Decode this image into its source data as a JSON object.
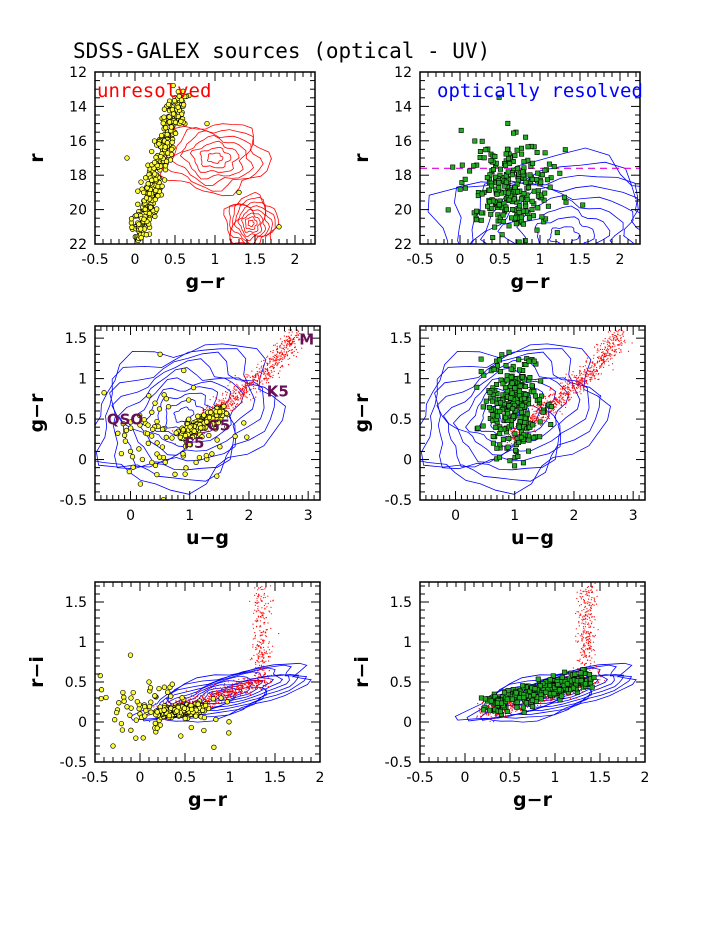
{
  "page": {
    "title": "SDSS-GALEX sources (optical - UV)"
  },
  "colors": {
    "frame": "#000000",
    "stars_red": "#ff0000",
    "galaxy_blue": "#0000ff",
    "unresolved_fill": "#ffff33",
    "resolved_fill": "#22aa22",
    "magenta_line": "#dd00dd",
    "label_purple": "#661155"
  },
  "chart_data": [
    {
      "type": "scatter",
      "panel": "top-left",
      "annotation": "unresolved",
      "xlabel": "g−r",
      "ylabel": "r",
      "xlim": [
        -0.5,
        2.25
      ],
      "ylim": [
        22,
        12
      ],
      "xticks": [
        "-0.5",
        "0",
        "0.5",
        "1",
        "1.5",
        "2"
      ],
      "yticks": [
        "12",
        "14",
        "16",
        "18",
        "20",
        "22"
      ],
      "series": [
        {
          "marker": "yellow circle",
          "points_sample": [
            [
              0.4,
              14
            ],
            [
              0.45,
              15
            ],
            [
              0.35,
              16
            ],
            [
              0.3,
              17
            ],
            [
              0.25,
              18
            ],
            [
              0.15,
              19
            ],
            [
              0.1,
              20
            ],
            [
              0.0,
              21
            ],
            [
              0.5,
              14.5
            ],
            [
              0.5,
              13.5
            ],
            [
              0.6,
              14
            ],
            [
              -0.1,
              17
            ],
            [
              0.9,
              15
            ],
            [
              1.3,
              19
            ],
            [
              1.8,
              21
            ]
          ]
        },
        {
          "marker": "red contours",
          "region": "stars (g-r 0.5-2, r 14-22)"
        }
      ]
    },
    {
      "type": "scatter",
      "panel": "top-right",
      "annotation": "optically resolved",
      "xlabel": "g−r",
      "ylabel": "r",
      "xlim": [
        -0.5,
        2.25
      ],
      "ylim": [
        22,
        12
      ],
      "xticks": [
        "-0.5",
        "0",
        "0.5",
        "1",
        "1.5",
        "2"
      ],
      "yticks": [
        "12",
        "14",
        "16",
        "18",
        "20",
        "22"
      ],
      "hline": 17.6,
      "series": [
        {
          "marker": "green square",
          "points_sample": [
            [
              0.5,
              18
            ],
            [
              0.6,
              18.5
            ],
            [
              0.7,
              19
            ],
            [
              0.4,
              17.8
            ],
            [
              0.8,
              18.2
            ],
            [
              0.5,
              19.5
            ],
            [
              0.9,
              20
            ],
            [
              0.3,
              19
            ],
            [
              0.6,
              16.5
            ],
            [
              0.7,
              15.5
            ],
            [
              1.0,
              18.5
            ],
            [
              0.2,
              20.5
            ]
          ]
        },
        {
          "marker": "blue contours",
          "region": "galaxies (g-r 0-2.2, r 17-22)"
        }
      ]
    },
    {
      "type": "scatter",
      "panel": "middle-left",
      "xlabel": "u−g",
      "ylabel": "g−r",
      "xlim": [
        -0.6,
        3.2
      ],
      "ylim": [
        -0.5,
        1.65
      ],
      "xticks": [
        "0",
        "1",
        "2",
        "3"
      ],
      "yticks": [
        "-0.5",
        "0",
        "0.5",
        "1",
        "1.5"
      ],
      "labels": [
        "QSO",
        "F5",
        "G5",
        "K5",
        "M"
      ],
      "series": [
        {
          "marker": "yellow circle",
          "points_sample": [
            [
              0.9,
              0.3
            ],
            [
              1.0,
              0.35
            ],
            [
              1.1,
              0.4
            ],
            [
              1.2,
              0.45
            ],
            [
              1.3,
              0.5
            ],
            [
              1.4,
              0.55
            ],
            [
              0.0,
              0.1
            ],
            [
              0.2,
              0.0
            ],
            [
              -0.1,
              0.3
            ],
            [
              0.3,
              0.2
            ],
            [
              0.5,
              1.3
            ],
            [
              0.9,
              1.1
            ]
          ]
        },
        {
          "marker": "red dots",
          "region": "stellar locus"
        },
        {
          "marker": "blue contours",
          "region": "galaxies"
        }
      ]
    },
    {
      "type": "scatter",
      "panel": "middle-right",
      "xlabel": "u−g",
      "ylabel": "g−r",
      "xlim": [
        -0.6,
        3.2
      ],
      "ylim": [
        -0.5,
        1.65
      ],
      "xticks": [
        "0",
        "1",
        "2",
        "3"
      ],
      "yticks": [
        "-0.5",
        "0",
        "0.5",
        "1",
        "1.5"
      ],
      "series": [
        {
          "marker": "green square",
          "points_sample": [
            [
              0.9,
              0.5
            ],
            [
              1.0,
              0.6
            ],
            [
              1.1,
              0.7
            ],
            [
              0.8,
              0.8
            ],
            [
              1.2,
              0.5
            ],
            [
              1.3,
              0.9
            ],
            [
              0.7,
              0.4
            ],
            [
              1.0,
              1.0
            ],
            [
              1.5,
              0.6
            ]
          ]
        },
        {
          "marker": "red dots",
          "region": "stellar locus"
        },
        {
          "marker": "blue contours",
          "region": "galaxies"
        }
      ]
    },
    {
      "type": "scatter",
      "panel": "bottom-left",
      "xlabel": "g−r",
      "ylabel": "r−i",
      "xlim": [
        -0.5,
        2.0
      ],
      "ylim": [
        -0.5,
        1.75
      ],
      "xticks": [
        "-0.5",
        "0",
        "0.5",
        "1",
        "1.5",
        "2"
      ],
      "yticks": [
        "-0.5",
        "0",
        "0.5",
        "1",
        "1.5"
      ],
      "series": [
        {
          "marker": "yellow circle",
          "points_sample": [
            [
              0.2,
              0.1
            ],
            [
              0.3,
              0.12
            ],
            [
              0.4,
              0.15
            ],
            [
              0.5,
              0.17
            ],
            [
              0.6,
              0.2
            ],
            [
              0.0,
              0.1
            ],
            [
              -0.1,
              0.3
            ],
            [
              0.1,
              0.5
            ],
            [
              -0.3,
              -0.3
            ],
            [
              0.9,
              0.3
            ]
          ]
        },
        {
          "marker": "red dots",
          "region": "stellar locus"
        },
        {
          "marker": "blue contours",
          "region": "galaxies"
        }
      ]
    },
    {
      "type": "scatter",
      "panel": "bottom-right",
      "xlabel": "g−r",
      "ylabel": "r−i",
      "xlim": [
        -0.5,
        2.0
      ],
      "ylim": [
        -0.5,
        1.75
      ],
      "xticks": [
        "-0.5",
        "0",
        "0.5",
        "1",
        "1.5",
        "2"
      ],
      "yticks": [
        "-0.5",
        "0",
        "0.5",
        "1",
        "1.5"
      ],
      "series": [
        {
          "marker": "green square",
          "points_sample": [
            [
              0.4,
              0.3
            ],
            [
              0.5,
              0.35
            ],
            [
              0.6,
              0.4
            ],
            [
              0.7,
              0.45
            ],
            [
              0.8,
              0.4
            ],
            [
              0.9,
              0.5
            ],
            [
              0.3,
              0.25
            ],
            [
              1.0,
              0.45
            ],
            [
              1.1,
              0.5
            ]
          ]
        },
        {
          "marker": "red dots",
          "region": "stellar locus"
        },
        {
          "marker": "blue contours",
          "region": "galaxies"
        }
      ]
    }
  ]
}
